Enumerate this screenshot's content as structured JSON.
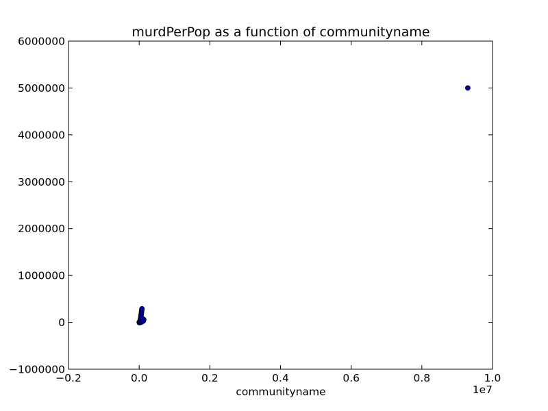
{
  "chart_data": {
    "type": "scatter",
    "title": "murdPerPop as a function of communityname",
    "xlabel": "communityname",
    "ylabel": "",
    "x_scale_note": "1e7",
    "xlim": [
      -0.2,
      1.0
    ],
    "ylim": [
      -1000000,
      6000000
    ],
    "x_ticks": [
      -0.2,
      0.0,
      0.2,
      0.4,
      0.6,
      0.8,
      1.0
    ],
    "x_tick_labels": [
      "−0.2",
      "0.0",
      "0.2",
      "0.4",
      "0.6",
      "0.8",
      "1.0"
    ],
    "y_ticks": [
      -1000000,
      0,
      1000000,
      2000000,
      3000000,
      4000000,
      5000000,
      6000000
    ],
    "y_tick_labels": [
      "−1000000",
      "0",
      "1000000",
      "2000000",
      "3000000",
      "4000000",
      "5000000",
      "6000000"
    ],
    "grid": false,
    "legend": "none",
    "marker_color": "#0000b8",
    "marker_edge_color": "#000000",
    "points": [
      {
        "x": 0.0,
        "y": 0
      },
      {
        "x": 0.0005,
        "y": 5000
      },
      {
        "x": 0.001,
        "y": -8000
      },
      {
        "x": 0.0015,
        "y": 12000
      },
      {
        "x": 0.002,
        "y": 20000
      },
      {
        "x": 0.0025,
        "y": 30000
      },
      {
        "x": 0.003,
        "y": 45000
      },
      {
        "x": 0.0035,
        "y": 60000
      },
      {
        "x": 0.004,
        "y": 80000
      },
      {
        "x": 0.0045,
        "y": 100000
      },
      {
        "x": 0.005,
        "y": 120000
      },
      {
        "x": 0.0055,
        "y": 150000
      },
      {
        "x": 0.006,
        "y": 180000
      },
      {
        "x": 0.0065,
        "y": 210000
      },
      {
        "x": 0.007,
        "y": 240000
      },
      {
        "x": 0.0075,
        "y": 270000
      },
      {
        "x": 0.008,
        "y": 290000
      },
      {
        "x": 0.0078,
        "y": 60000
      },
      {
        "x": 0.009,
        "y": 40000
      },
      {
        "x": 0.01,
        "y": 50000
      },
      {
        "x": 0.011,
        "y": 70000
      },
      {
        "x": 0.012,
        "y": 30000
      },
      {
        "x": 0.013,
        "y": 60000
      },
      {
        "x": 0.0025,
        "y": -5000
      },
      {
        "x": 0.0035,
        "y": 10000
      },
      {
        "x": 0.006,
        "y": 5000
      },
      {
        "x": 0.0085,
        "y": 80000
      },
      {
        "x": 0.0095,
        "y": 20000
      },
      {
        "x": 0.93,
        "y": 5000000
      }
    ]
  }
}
